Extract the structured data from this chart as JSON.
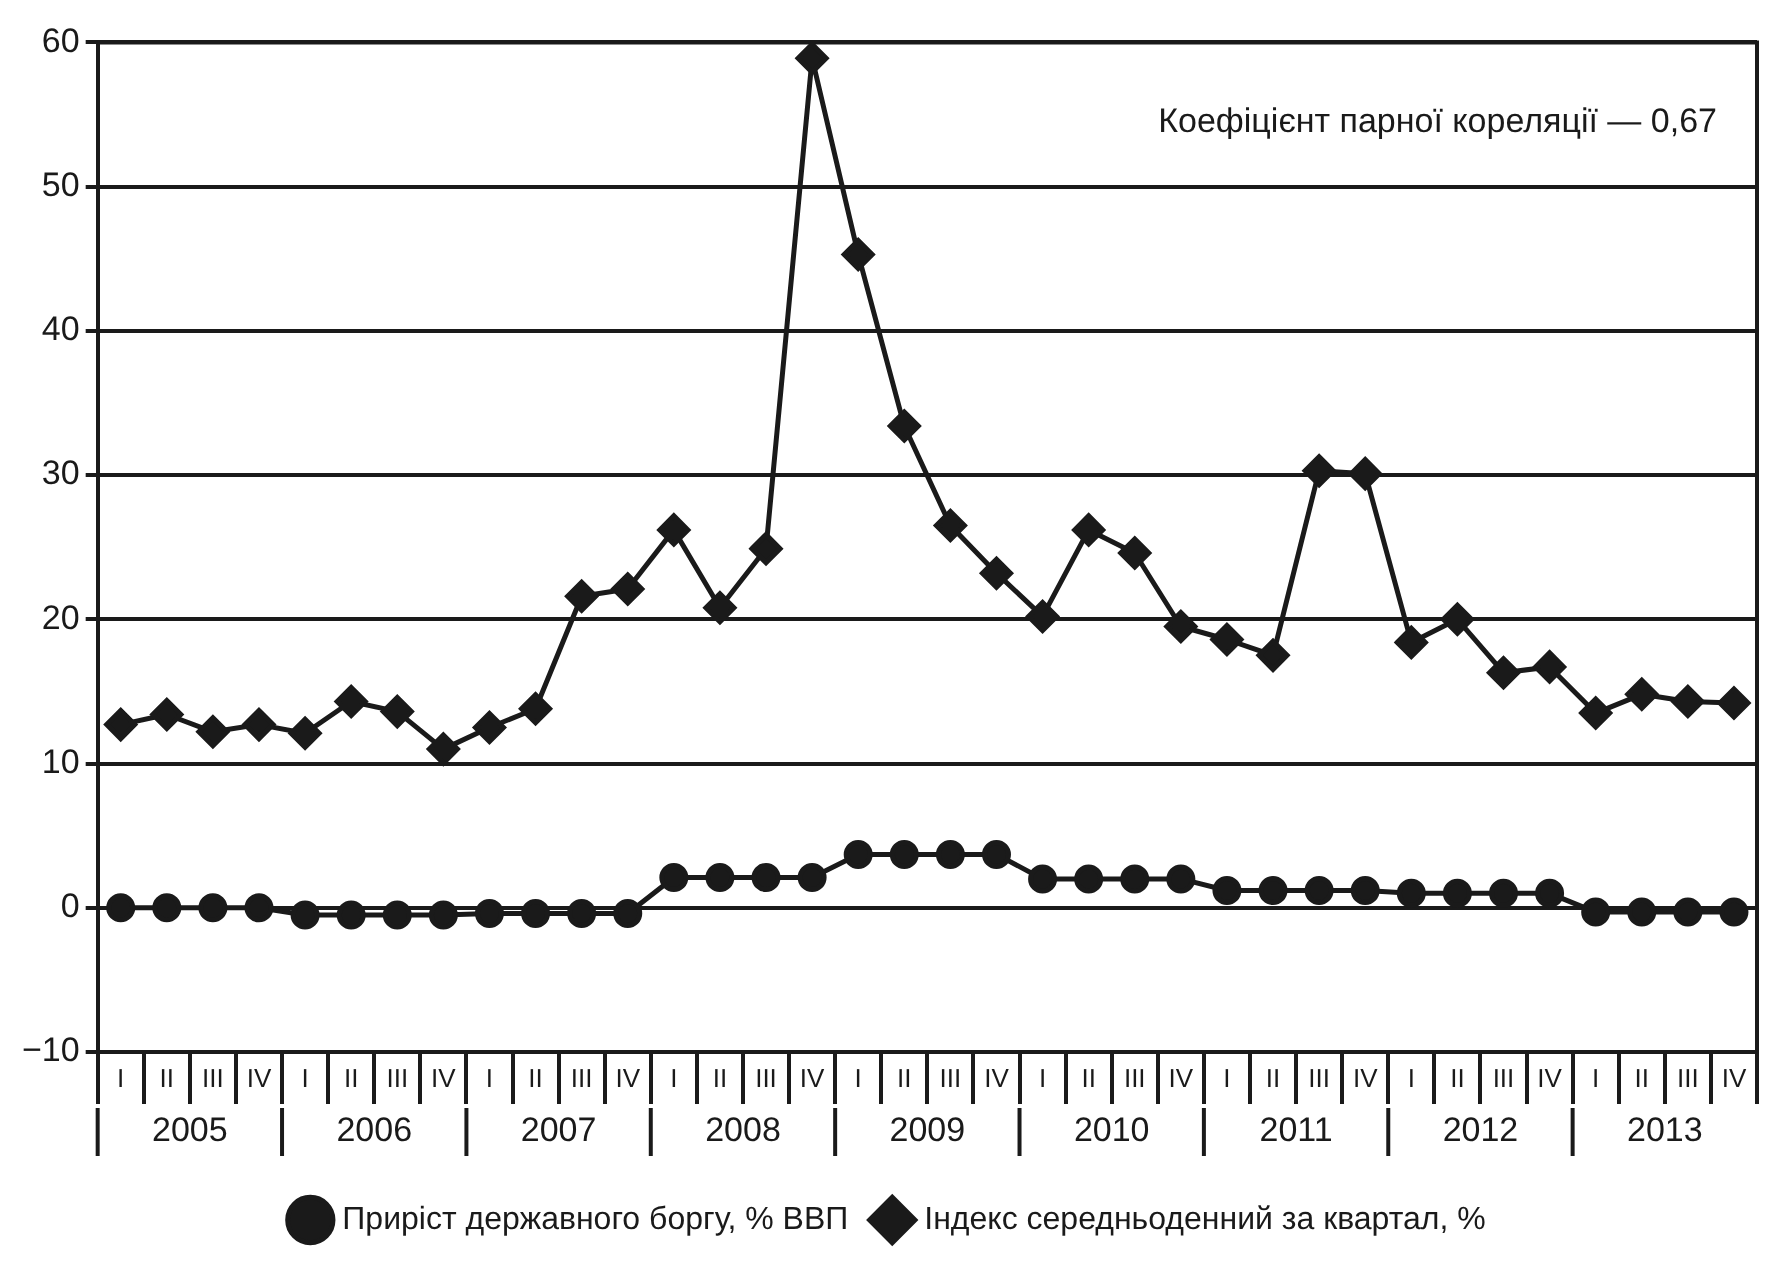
{
  "chart_data": {
    "type": "line",
    "categories": [
      "I",
      "II",
      "III",
      "IV",
      "I",
      "II",
      "III",
      "IV",
      "I",
      "II",
      "III",
      "IV",
      "I",
      "II",
      "III",
      "IV",
      "I",
      "II",
      "III",
      "IV",
      "I",
      "II",
      "III",
      "IV",
      "I",
      "II",
      "III",
      "IV",
      "I",
      "II",
      "III",
      "IV",
      "I",
      "II",
      "III",
      "IV"
    ],
    "series": [
      {
        "name": "Приріст державного боргу, % ВВП",
        "color": "#1a1a1a",
        "marker": "circle",
        "values": [
          0,
          0,
          0,
          0,
          -0.5,
          -0.5,
          -0.5,
          -0.5,
          -0.4,
          -0.4,
          -0.4,
          -0.4,
          2.1,
          2.1,
          2.1,
          2.1,
          3.7,
          3.7,
          3.7,
          3.7,
          2.0,
          2.0,
          2.0,
          2.0,
          1.2,
          1.2,
          1.2,
          1.2,
          1.0,
          1.0,
          1.0,
          1.0,
          -0.3,
          -0.3,
          -0.3,
          -0.3
        ]
      },
      {
        "name": "Індекс середньоденний за квартал, %",
        "color": "#1a1a1a",
        "marker": "diamond",
        "values": [
          12.7,
          13.4,
          12.2,
          12.7,
          12.1,
          14.3,
          13.6,
          11.0,
          12.5,
          13.8,
          21.6,
          22.1,
          26.2,
          20.8,
          24.9,
          58.9,
          45.3,
          33.4,
          26.5,
          23.2,
          20.2,
          26.2,
          24.6,
          19.5,
          18.6,
          17.5,
          30.3,
          30.1,
          18.4,
          20.0,
          16.3,
          16.7,
          13.5,
          14.8,
          14.3,
          14.2
        ]
      }
    ],
    "ylim": [
      -10,
      60
    ],
    "yticks": [
      -10,
      0,
      10,
      20,
      30,
      40,
      50,
      60
    ],
    "grid": "y",
    "legend": "bottom",
    "line_style": "solid",
    "annotations": [
      "Коефіцієнт парної кореляції — 0,67",
      "2005",
      "2006",
      "2007",
      "2008",
      "2009",
      "2010",
      "2011",
      "2012",
      "2013"
    ]
  }
}
